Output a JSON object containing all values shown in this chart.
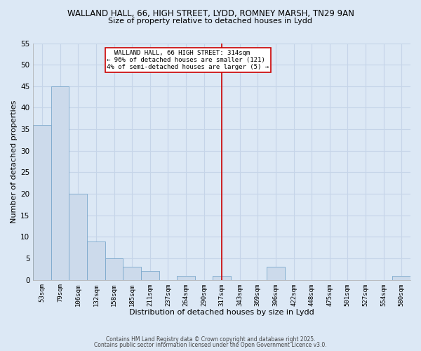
{
  "title1": "WALLAND HALL, 66, HIGH STREET, LYDD, ROMNEY MARSH, TN29 9AN",
  "title2": "Size of property relative to detached houses in Lydd",
  "xlabel": "Distribution of detached houses by size in Lydd",
  "ylabel": "Number of detached properties",
  "bar_color": "#ccdaeb",
  "bar_edge_color": "#7ba8cc",
  "grid_color": "#c5d4e8",
  "bg_color": "#dce8f5",
  "categories": [
    "53sqm",
    "79sqm",
    "106sqm",
    "132sqm",
    "158sqm",
    "185sqm",
    "211sqm",
    "237sqm",
    "264sqm",
    "290sqm",
    "317sqm",
    "343sqm",
    "369sqm",
    "396sqm",
    "422sqm",
    "448sqm",
    "475sqm",
    "501sqm",
    "527sqm",
    "554sqm",
    "580sqm"
  ],
  "values": [
    36,
    45,
    20,
    9,
    5,
    3,
    2,
    0,
    1,
    0,
    1,
    0,
    0,
    3,
    0,
    0,
    0,
    0,
    0,
    0,
    1
  ],
  "vline_x": 10,
  "vline_color": "#cc0000",
  "annotation_line1": "  WALLAND HALL, 66 HIGH STREET: 314sqm",
  "annotation_line2": "← 96% of detached houses are smaller (121)",
  "annotation_line3": "4% of semi-detached houses are larger (5) →",
  "annotation_box_color": "white",
  "annotation_box_edge": "#cc0000",
  "ylim": [
    0,
    55
  ],
  "yticks": [
    0,
    5,
    10,
    15,
    20,
    25,
    30,
    35,
    40,
    45,
    50,
    55
  ],
  "footnote1": "Contains HM Land Registry data © Crown copyright and database right 2025.",
  "footnote2": "Contains public sector information licensed under the Open Government Licence v3.0."
}
